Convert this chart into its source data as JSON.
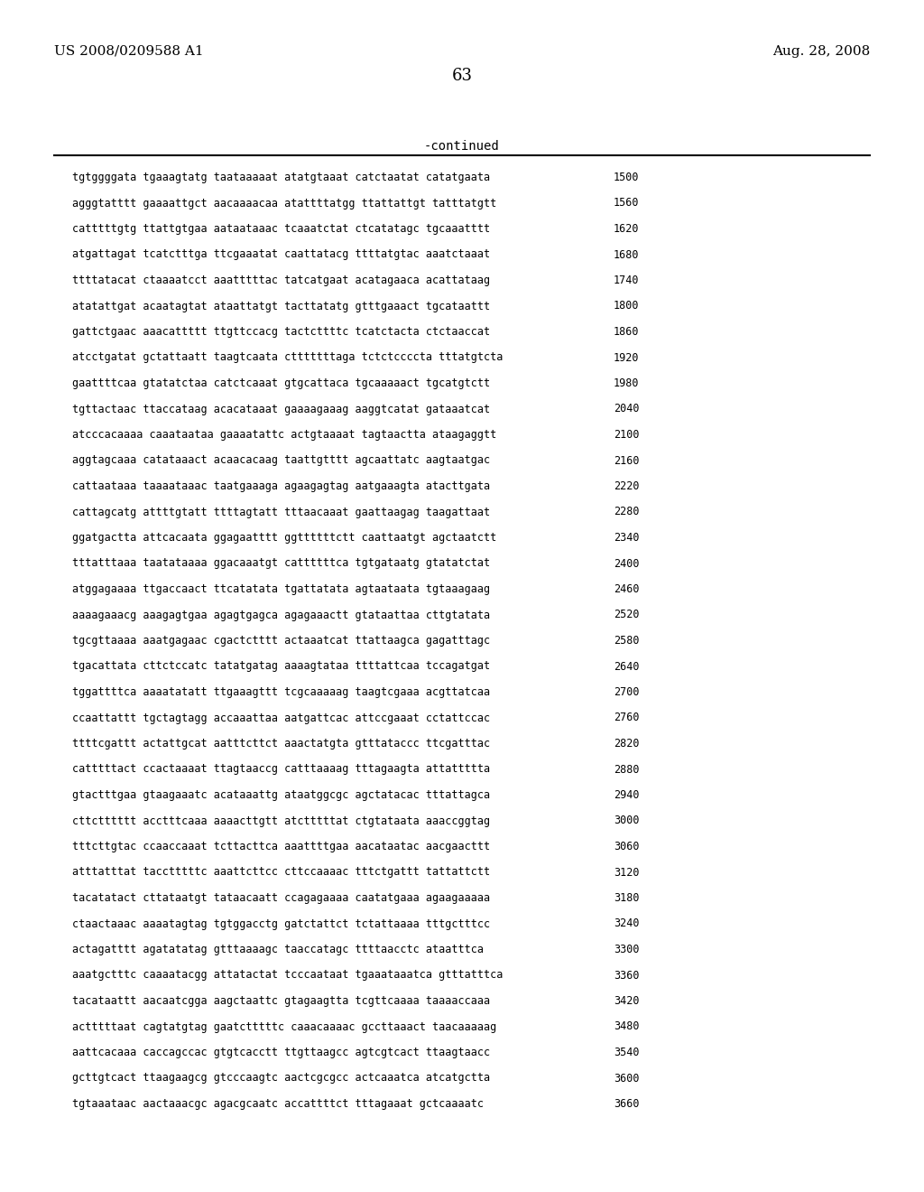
{
  "header_left": "US 2008/0209588 A1",
  "header_right": "Aug. 28, 2008",
  "page_number": "63",
  "continued_label": "-continued",
  "bg_color": "#ffffff",
  "text_color": "#000000",
  "sequences": [
    [
      "tgtggggata tgaaagtatg taataaaaat atatgtaaat catctaatat catatgaata",
      "1500"
    ],
    [
      "agggtatttt gaaaattgct aacaaaacaa atattttatgg ttattattgt tatttatgtt",
      "1560"
    ],
    [
      "catttttgtg ttattgtgaa aataataaac tcaaatctat ctcatatagc tgcaaatttt",
      "1620"
    ],
    [
      "atgattagat tcatctttga ttcgaaatat caattatacg ttttatgtac aaatctaaat",
      "1680"
    ],
    [
      "ttttatacat ctaaaatcct aaatttttac tatcatgaat acatagaaca acattataag",
      "1740"
    ],
    [
      "atatattgat acaatagtat ataattatgt tacttatatg gtttgaaact tgcataattt",
      "1800"
    ],
    [
      "gattctgaac aaacattttt ttgttccacg tactcttttc tcatctacta ctctaaccat",
      "1860"
    ],
    [
      "atcctgatat gctattaatt taagtcaata ctttttttaga tctctccccta tttatgtcta",
      "1920"
    ],
    [
      "gaattttcaa gtatatctaa catctcaaat gtgcattaca tgcaaaaact tgcatgtctt",
      "1980"
    ],
    [
      "tgttactaac ttaccataag acacataaat gaaaagaaag aaggtcatat gataaatcat",
      "2040"
    ],
    [
      "atcccacaaaa caaataataa gaaaatattc actgtaaaat tagtaactta ataagaggtt",
      "2100"
    ],
    [
      "aggtagcaaa catataaact acaacacaag taattgtttt agcaattatc aagtaatgac",
      "2160"
    ],
    [
      "cattaataaa taaaataaac taatgaaaga agaagagtag aatgaaagta atacttgata",
      "2220"
    ],
    [
      "cattagcatg attttgtatt ttttagtatt tttaacaaat gaattaagag taagattaat",
      "2280"
    ],
    [
      "ggatgactta attcacaata ggagaatttt ggttttttctt caattaatgt agctaatctt",
      "2340"
    ],
    [
      "tttatttaaa taatataaaa ggacaaatgt cattttttca tgtgataatg gtatatctat",
      "2400"
    ],
    [
      "atggagaaaa ttgaccaact ttcatatata tgattatata agtaataata tgtaaagaag",
      "2460"
    ],
    [
      "aaaagaaacg aaagagtgaa agagtgagca agagaaactt gtataattaa cttgtatata",
      "2520"
    ],
    [
      "tgcgttaaaa aaatgagaac cgactctttt actaaatcat ttattaagca gagatttagc",
      "2580"
    ],
    [
      "tgacattata cttctccatc tatatgatag aaaagtataa ttttattcaa tccagatgat",
      "2640"
    ],
    [
      "tggattttca aaaatatatt ttgaaagttt tcgcaaaaag taagtcgaaa acgttatcaa",
      "2700"
    ],
    [
      "ccaattattt tgctagtagg accaaattaa aatgattcac attccgaaat cctattccac",
      "2760"
    ],
    [
      "ttttcgattt actattgcat aatttcttct aaactatgta gtttataccc ttcgatttac",
      "2820"
    ],
    [
      "catttttact ccactaaaat ttagtaaccg catttaaaag tttagaagta attattttta",
      "2880"
    ],
    [
      "gtactttgaa gtaagaaatc acataaattg ataatggcgc agctatacac tttattagca",
      "2940"
    ],
    [
      "cttctttttt acctttcaaa aaaacttgtt atctttttat ctgtataata aaaccggtag",
      "3000"
    ],
    [
      "tttcttgtac ccaaccaaat tcttacttca aaattttgaa aacataatac aacgaacttt",
      "3060"
    ],
    [
      "atttatttat tacctttttc aaattcttcc cttccaaaac tttctgattt tattattctt",
      "3120"
    ],
    [
      "tacatatact cttataatgt tataacaatt ccagagaaaa caatatgaaa agaagaaaaa",
      "3180"
    ],
    [
      "ctaactaaac aaaatagtag tgtggacctg gatctattct tctattaaaa tttgctttcc",
      "3240"
    ],
    [
      "actagatttt agatatatag gtttaaaagc taaccatagc ttttaacctc ataatttca",
      "3300"
    ],
    [
      "aaatgctttc caaaatacgg attatactat tcccaataat tgaaataaatca gtttatttca",
      "3360"
    ],
    [
      "tacataattt aacaatcgga aagctaattc gtagaagtta tcgttcaaaa taaaaccaaa",
      "3420"
    ],
    [
      "actttttaat cagtatgtag gaatctttttc caaacaaaac gccttaaact taacaaaaag",
      "3480"
    ],
    [
      "aattcacaaa caccagccac gtgtcacctt ttgttaagcc agtcgtcact ttaagtaacc",
      "3540"
    ],
    [
      "gcttgtcact ttaagaagcg gtcccaagtc aactcgcgcc actcaaatca atcatgctta",
      "3600"
    ],
    [
      "tgtaaataac aactaaacgc agacgcaatc accattttct tttagaaat gctcaaaatc",
      "3660"
    ]
  ]
}
